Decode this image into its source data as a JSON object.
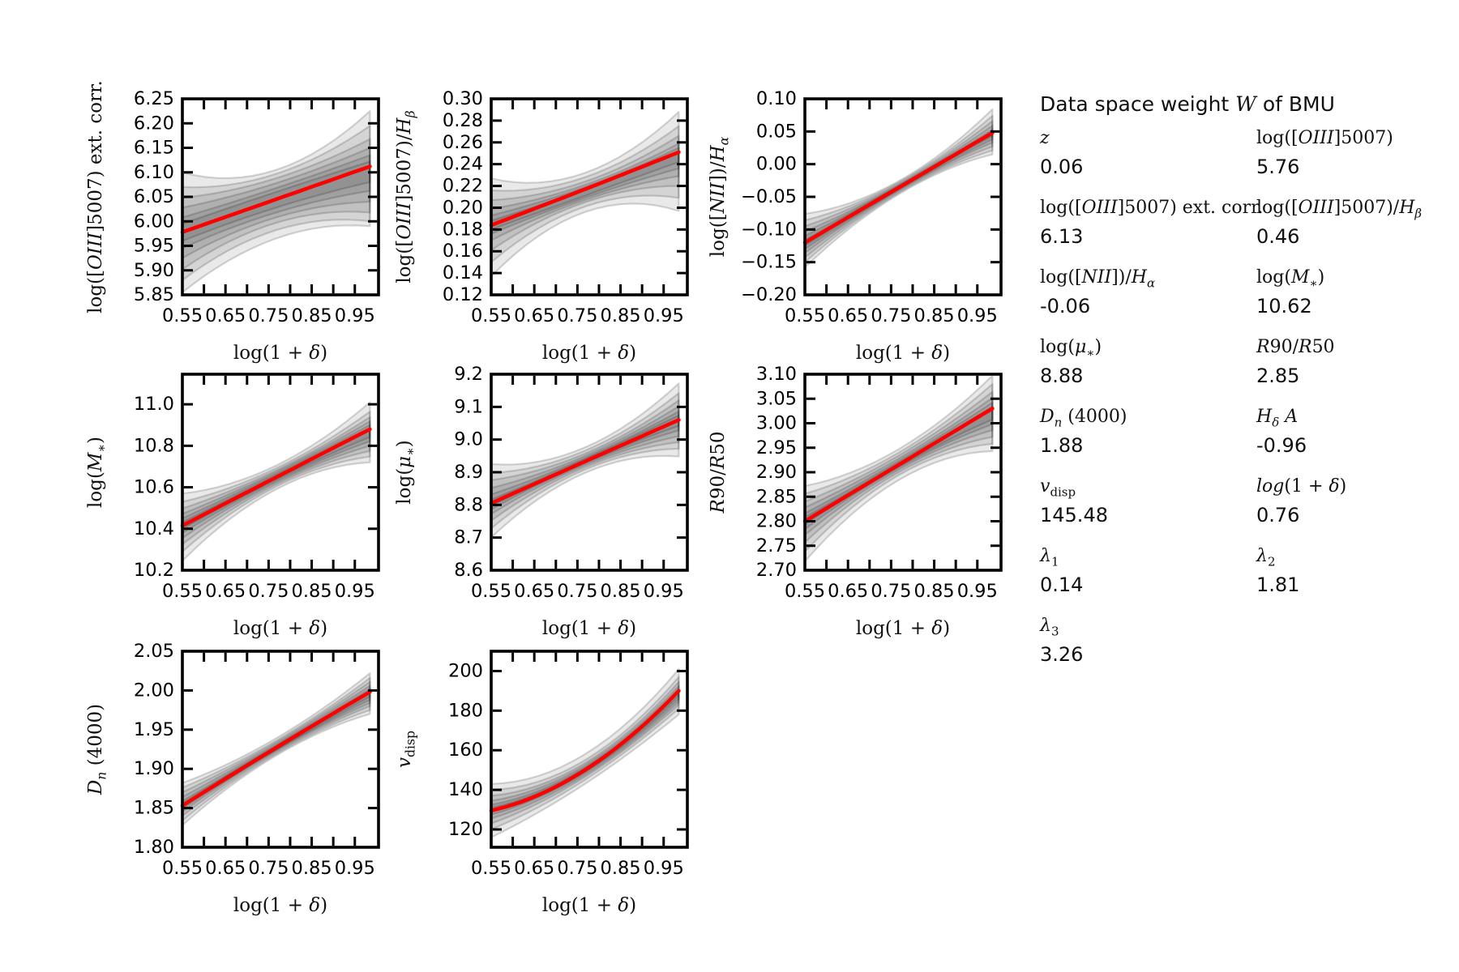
{
  "panel": {
    "title_html": "Data space weight <span class=\"ser\"><i>W</i></span> of BMU",
    "rows": [
      {
        "left": {
          "label_html": "<i>z</i>",
          "value": "0.06"
        },
        "right": {
          "label_html": "log([<i>OIII</i>]5007)",
          "value": "5.76"
        }
      },
      {
        "left": {
          "label_html": "log([<i>OIII</i>]5007) ext. corr.",
          "value": "6.13"
        },
        "right": {
          "label_html": "log([<i>OIII</i>]5007)/<i>H</i><sub><i>β</i></sub>",
          "value": "0.46"
        }
      },
      {
        "left": {
          "label_html": "log([<i>NII</i>])/<i>H</i><sub><i>α</i></sub>",
          "value": "-0.06"
        },
        "right": {
          "label_html": "log(<i>M</i><sub>∗</sub>)",
          "value": "10.62"
        }
      },
      {
        "left": {
          "label_html": "log(<i>μ</i><sub>∗</sub>)",
          "value": "8.88"
        },
        "right": {
          "label_html": "<i>R</i>90/<i>R</i>50",
          "value": "2.85"
        }
      },
      {
        "left": {
          "label_html": "<i>D</i><sub><i>n</i></sub> (4000)",
          "value": "1.88"
        },
        "right": {
          "label_html": "<i>H</i><sub><i>δ</i></sub> <i>A</i>",
          "value": "-0.96"
        }
      },
      {
        "left": {
          "label_html": "<i>v</i><sub>disp</sub>",
          "value": "145.48"
        },
        "right": {
          "label_html": "<i>log</i>(1 + <i>δ</i>)",
          "value": "0.76"
        }
      },
      {
        "left": {
          "label_html": "<i>λ</i><sub>1</sub>",
          "value": "0.14"
        },
        "right": {
          "label_html": "<i>λ</i><sub>2</sub>",
          "value": "1.81"
        }
      },
      {
        "left": {
          "label_html": "<i>λ</i><sub>3</sub>",
          "value": "3.26"
        }
      }
    ]
  },
  "layout": {
    "cols": [
      225,
      606,
      993
    ],
    "rows": [
      122,
      462,
      804
    ],
    "grid_positions": [
      [
        0,
        0
      ],
      [
        1,
        0
      ],
      [
        2,
        0
      ],
      [
        0,
        1
      ],
      [
        1,
        1
      ],
      [
        2,
        1
      ],
      [
        0,
        2
      ],
      [
        1,
        2
      ]
    ]
  },
  "chart_data": [
    {
      "type": "line",
      "name": "log-oiii5007-ext-corr",
      "ylabel_html": "log([<i>OIII</i>]5007) ext. corr.",
      "xlabel_html": "log(1 + <i>δ</i>)",
      "xlim": [
        0.55,
        1.005
      ],
      "x_data_range": [
        0.55,
        0.985
      ],
      "xticks": [
        0.55,
        0.6,
        0.65,
        0.7,
        0.75,
        0.8,
        0.85,
        0.9,
        0.95
      ],
      "xtick_labeled": [
        [
          0.55,
          "0.55"
        ],
        [
          0.65,
          "0.65"
        ],
        [
          0.75,
          "0.75"
        ],
        [
          0.85,
          "0.85"
        ],
        [
          0.95,
          "0.95"
        ]
      ],
      "ylim": [
        5.85,
        6.25
      ],
      "yticks": [
        5.85,
        5.9,
        5.95,
        6.0,
        6.05,
        6.1,
        6.15,
        6.2,
        6.25
      ],
      "ytick_labels": [
        "5.85",
        "5.90",
        "5.95",
        "6.00",
        "6.05",
        "6.10",
        "6.15",
        "6.20",
        "6.25"
      ],
      "line": {
        "start": 5.978,
        "mid": 6.045,
        "end": 6.112,
        "color": "#ff0000"
      },
      "bands": [
        [
          5.855,
          6.1,
          5.965,
          6.105,
          5.99,
          6.225
        ],
        [
          5.88,
          6.07,
          5.982,
          6.097,
          6.0,
          6.195
        ],
        [
          5.902,
          6.048,
          5.997,
          6.088,
          6.018,
          6.168
        ],
        [
          5.925,
          6.028,
          6.008,
          6.078,
          6.04,
          6.15
        ],
        [
          5.945,
          6.008,
          6.018,
          6.068,
          6.062,
          6.135
        ],
        [
          5.96,
          5.995,
          6.028,
          6.06,
          6.08,
          6.122
        ]
      ]
    },
    {
      "type": "line",
      "name": "log-oiii5007-hbeta",
      "ylabel_html": "log([<i>OIII</i>]5007)/<i>H</i><sub><i>β</i></sub>",
      "xlabel_html": "log(1 + <i>δ</i>)",
      "xlim": [
        0.55,
        1.005
      ],
      "x_data_range": [
        0.55,
        0.985
      ],
      "xticks": [
        0.55,
        0.6,
        0.65,
        0.7,
        0.75,
        0.8,
        0.85,
        0.9,
        0.95
      ],
      "xtick_labeled": [
        [
          0.55,
          "0.55"
        ],
        [
          0.65,
          "0.65"
        ],
        [
          0.75,
          "0.75"
        ],
        [
          0.85,
          "0.85"
        ],
        [
          0.95,
          "0.95"
        ]
      ],
      "ylim": [
        0.12,
        0.3
      ],
      "yticks": [
        0.12,
        0.14,
        0.16,
        0.18,
        0.2,
        0.22,
        0.24,
        0.26,
        0.28,
        0.3
      ],
      "ytick_labels": [
        "0.12",
        "0.14",
        "0.16",
        "0.18",
        "0.20",
        "0.22",
        "0.24",
        "0.26",
        "0.28",
        "0.30"
      ],
      "line": {
        "start": 0.184,
        "mid": 0.217,
        "end": 0.251,
        "color": "#ff0000"
      },
      "bands": [
        [
          0.137,
          0.227,
          0.196,
          0.232,
          0.197,
          0.288
        ],
        [
          0.15,
          0.216,
          0.201,
          0.228,
          0.209,
          0.275
        ],
        [
          0.161,
          0.207,
          0.205,
          0.224,
          0.22,
          0.266
        ],
        [
          0.17,
          0.199,
          0.207,
          0.221,
          0.229,
          0.259
        ],
        [
          0.176,
          0.193,
          0.209,
          0.219,
          0.236,
          0.255
        ],
        [
          0.18,
          0.188,
          0.211,
          0.217,
          0.242,
          0.25
        ]
      ]
    },
    {
      "type": "line",
      "name": "log-nii-halpha",
      "ylabel_html": "log([<i>NII</i>])/<i>H</i><sub><i>α</i></sub>",
      "xlabel_html": "log(1 + <i>δ</i>)",
      "xlim": [
        0.55,
        1.005
      ],
      "x_data_range": [
        0.55,
        0.985
      ],
      "xticks": [
        0.55,
        0.6,
        0.65,
        0.7,
        0.75,
        0.8,
        0.85,
        0.9,
        0.95
      ],
      "xtick_labeled": [
        [
          0.55,
          "0.55"
        ],
        [
          0.65,
          "0.65"
        ],
        [
          0.75,
          "0.75"
        ],
        [
          0.85,
          "0.85"
        ],
        [
          0.95,
          "0.95"
        ]
      ],
      "ylim": [
        -0.2,
        0.1
      ],
      "yticks": [
        -0.2,
        -0.15,
        -0.1,
        -0.05,
        0.0,
        0.05,
        0.1
      ],
      "ytick_labels": [
        "−0.20",
        "−0.15",
        "−0.10",
        "−0.05",
        "0.00",
        "0.05",
        "0.10"
      ],
      "line": {
        "start": -0.12,
        "mid": -0.036,
        "end": 0.048,
        "color": "#ff0000"
      },
      "bands": [
        [
          -0.158,
          -0.076,
          -0.046,
          -0.026,
          0.015,
          0.084
        ],
        [
          -0.15,
          -0.086,
          -0.044,
          -0.028,
          0.021,
          0.074
        ],
        [
          -0.143,
          -0.095,
          -0.042,
          -0.03,
          0.027,
          0.066
        ],
        [
          -0.136,
          -0.103,
          -0.04,
          -0.032,
          0.033,
          0.059
        ],
        [
          -0.13,
          -0.11,
          -0.039,
          -0.033,
          0.038,
          0.053
        ],
        [
          -0.125,
          -0.116,
          -0.037,
          -0.034,
          0.043,
          0.049
        ]
      ]
    },
    {
      "type": "line",
      "name": "log-mstar",
      "ylabel_html": "log(<i>M</i><sub>∗</sub>)",
      "xlabel_html": "log(1 + <i>δ</i>)",
      "xlim": [
        0.55,
        1.005
      ],
      "x_data_range": [
        0.55,
        0.985
      ],
      "xticks": [
        0.55,
        0.6,
        0.65,
        0.7,
        0.75,
        0.8,
        0.85,
        0.9,
        0.95
      ],
      "xtick_labeled": [
        [
          0.55,
          "0.55"
        ],
        [
          0.65,
          "0.65"
        ],
        [
          0.75,
          "0.75"
        ],
        [
          0.85,
          "0.85"
        ],
        [
          0.95,
          "0.95"
        ]
      ],
      "ylim": [
        10.2,
        11.145
      ],
      "yticks": [
        10.2,
        10.4,
        10.6,
        10.8,
        11.0
      ],
      "ytick_labels": [
        "10.2",
        "10.4",
        "10.6",
        "10.8",
        "11.0"
      ],
      "line": {
        "start": 10.415,
        "mid": 10.648,
        "end": 10.88,
        "color": "#ff0000"
      },
      "bands": [
        [
          10.245,
          10.57,
          10.59,
          10.705,
          10.72,
          11.01
        ],
        [
          10.29,
          10.53,
          10.603,
          10.692,
          10.748,
          10.965
        ],
        [
          10.325,
          10.498,
          10.613,
          10.682,
          10.775,
          10.938
        ],
        [
          10.355,
          10.472,
          10.622,
          10.674,
          10.8,
          10.918
        ],
        [
          10.38,
          10.45,
          10.63,
          10.666,
          10.822,
          10.9
        ],
        [
          10.398,
          10.432,
          10.638,
          10.658,
          10.842,
          10.885
        ]
      ]
    },
    {
      "type": "line",
      "name": "log-mustar",
      "ylabel_html": "log(<i>μ</i><sub>∗</sub>)",
      "xlabel_html": "log(1 + <i>δ</i>)",
      "xlim": [
        0.55,
        1.005
      ],
      "x_data_range": [
        0.55,
        0.985
      ],
      "xticks": [
        0.55,
        0.6,
        0.65,
        0.7,
        0.75,
        0.8,
        0.85,
        0.9,
        0.95
      ],
      "xtick_labeled": [
        [
          0.55,
          "0.55"
        ],
        [
          0.65,
          "0.65"
        ],
        [
          0.75,
          "0.75"
        ],
        [
          0.85,
          "0.85"
        ],
        [
          0.95,
          "0.95"
        ]
      ],
      "ylim": [
        8.6,
        9.2
      ],
      "yticks": [
        8.6,
        8.7,
        8.8,
        8.9,
        9.0,
        9.1,
        9.2
      ],
      "ytick_labels": [
        "8.6",
        "8.7",
        "8.8",
        "8.9",
        "9.0",
        "9.1",
        "9.2"
      ],
      "line": {
        "start": 8.805,
        "mid": 8.933,
        "end": 9.06,
        "color": "#ff0000"
      },
      "bands": [
        [
          8.7,
          8.925,
          8.898,
          8.976,
          8.948,
          9.172
        ],
        [
          8.728,
          8.898,
          8.908,
          8.966,
          8.972,
          9.142
        ],
        [
          8.752,
          8.876,
          8.915,
          8.957,
          8.992,
          9.12
        ],
        [
          8.772,
          8.852,
          8.921,
          8.95,
          9.01,
          9.102
        ],
        [
          8.786,
          8.832,
          8.926,
          8.944,
          9.028,
          9.086
        ],
        [
          8.796,
          8.816,
          8.93,
          8.94,
          9.042,
          9.074
        ]
      ]
    },
    {
      "type": "line",
      "name": "r90-r50",
      "ylabel_html": "<i>R</i>90/<i>R</i>50",
      "xlabel_html": "log(1 + <i>δ</i>)",
      "xlim": [
        0.55,
        1.005
      ],
      "x_data_range": [
        0.55,
        0.985
      ],
      "xticks": [
        0.55,
        0.6,
        0.65,
        0.7,
        0.75,
        0.8,
        0.85,
        0.9,
        0.95
      ],
      "xtick_labeled": [
        [
          0.55,
          "0.55"
        ],
        [
          0.65,
          "0.65"
        ],
        [
          0.75,
          "0.75"
        ],
        [
          0.85,
          "0.85"
        ],
        [
          0.95,
          "0.95"
        ]
      ],
      "ylim": [
        2.7,
        3.1
      ],
      "yticks": [
        2.7,
        2.75,
        2.8,
        2.85,
        2.9,
        2.95,
        3.0,
        3.05,
        3.1
      ],
      "ytick_labels": [
        "2.70",
        "2.75",
        "2.80",
        "2.85",
        "2.90",
        "2.95",
        "3.00",
        "3.05",
        "3.10"
      ],
      "line": {
        "start": 2.8,
        "mid": 2.915,
        "end": 3.03,
        "color": "#ff0000"
      },
      "bands": [
        [
          2.718,
          2.872,
          2.884,
          2.947,
          2.943,
          3.097
        ],
        [
          2.738,
          2.856,
          2.894,
          2.94,
          2.958,
          3.08
        ],
        [
          2.757,
          2.84,
          2.9,
          2.934,
          2.972,
          3.064
        ],
        [
          2.772,
          2.828,
          2.905,
          2.928,
          2.986,
          3.052
        ],
        [
          2.784,
          2.816,
          2.909,
          2.923,
          2.998,
          3.042
        ],
        [
          2.793,
          2.808,
          2.912,
          2.919,
          3.008,
          3.034
        ]
      ]
    },
    {
      "type": "line",
      "name": "dn4000",
      "ylabel_html": "<i>D</i><sub><i>n</i></sub> (4000)",
      "xlabel_html": "log(1 + <i>δ</i>)",
      "xlim": [
        0.55,
        1.005
      ],
      "x_data_range": [
        0.55,
        0.985
      ],
      "xticks": [
        0.55,
        0.6,
        0.65,
        0.7,
        0.75,
        0.8,
        0.85,
        0.9,
        0.95
      ],
      "xtick_labeled": [
        [
          0.55,
          "0.55"
        ],
        [
          0.65,
          "0.65"
        ],
        [
          0.75,
          "0.75"
        ],
        [
          0.85,
          "0.85"
        ],
        [
          0.95,
          "0.95"
        ]
      ],
      "ylim": [
        1.8,
        2.05
      ],
      "yticks": [
        1.8,
        1.85,
        1.9,
        1.95,
        2.0,
        2.05
      ],
      "ytick_labels": [
        "1.80",
        "1.85",
        "1.90",
        "1.95",
        "2.00",
        "2.05"
      ],
      "line": {
        "start": 1.853,
        "mid": 1.927,
        "end": 1.998,
        "color": "#ff0000"
      },
      "bands": [
        [
          1.828,
          1.882,
          1.917,
          1.939,
          1.97,
          2.022
        ],
        [
          1.834,
          1.876,
          1.919,
          1.936,
          1.975,
          2.016
        ],
        [
          1.84,
          1.87,
          1.921,
          1.934,
          1.98,
          2.011
        ],
        [
          1.845,
          1.864,
          1.923,
          1.932,
          1.984,
          2.006
        ],
        [
          1.849,
          1.859,
          1.924,
          1.93,
          1.988,
          2.002
        ],
        [
          1.852,
          1.856,
          1.925,
          1.929,
          1.992,
          1.999
        ]
      ]
    },
    {
      "type": "line",
      "name": "vdisp",
      "ylabel_html": "<i>v</i><sub>disp</sub>",
      "xlabel_html": "log(1 + <i>δ</i>)",
      "xlim": [
        0.55,
        1.005
      ],
      "x_data_range": [
        0.55,
        0.985
      ],
      "xticks": [
        0.55,
        0.6,
        0.65,
        0.7,
        0.75,
        0.8,
        0.85,
        0.9,
        0.95
      ],
      "xtick_labeled": [
        [
          0.55,
          "0.55"
        ],
        [
          0.65,
          "0.65"
        ],
        [
          0.75,
          "0.75"
        ],
        [
          0.85,
          "0.85"
        ],
        [
          0.95,
          "0.95"
        ]
      ],
      "ylim": [
        111,
        210
      ],
      "yticks": [
        120,
        140,
        160,
        180,
        200
      ],
      "ytick_labels": [
        "120",
        "140",
        "160",
        "180",
        "200"
      ],
      "line": {
        "start": 129.5,
        "mid": 150,
        "end": 190,
        "color": "#ff0000"
      },
      "bands": [
        [
          116,
          143,
          143,
          158,
          178,
          201
        ],
        [
          120,
          140,
          145,
          155,
          181,
          197
        ],
        [
          123,
          137,
          146.5,
          153.5,
          183,
          194.5
        ],
        [
          125.5,
          134.5,
          147.5,
          152.5,
          184.5,
          192.5
        ],
        [
          127.5,
          132.5,
          148.5,
          151.5,
          186,
          191
        ],
        [
          129,
          131,
          149.2,
          150.8,
          187.5,
          190
        ]
      ]
    }
  ]
}
